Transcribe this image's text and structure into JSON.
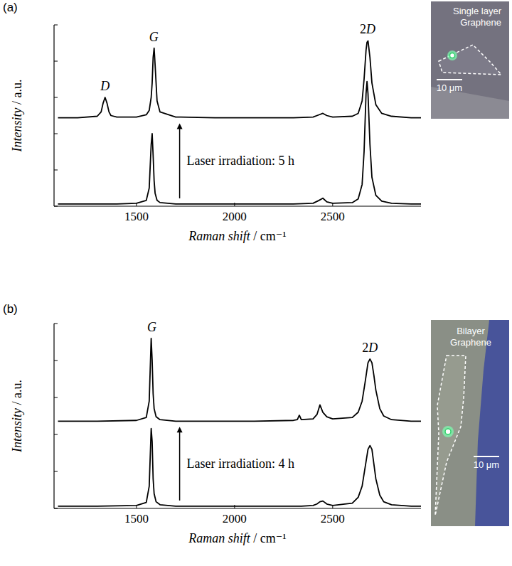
{
  "chart_data": [
    {
      "type": "line",
      "panel_label": "(a)",
      "x_label": "Raman shift / cm⁻¹",
      "y_label": "Intensity / a.u.",
      "xlim": [
        1080,
        2950
      ],
      "xticks": [
        1500,
        2000,
        2500
      ],
      "ylim": [
        0,
        2.5
      ],
      "yticks": [
        0,
        0.5,
        1,
        1.5,
        2,
        2.5
      ],
      "tick_labels": "x",
      "grid": false,
      "x": [
        1100,
        1200,
        1300,
        1320,
        1330,
        1340,
        1350,
        1360,
        1370,
        1400,
        1500,
        1550,
        1565,
        1575,
        1580,
        1585,
        1590,
        1595,
        1605,
        1620,
        1700,
        1900,
        2100,
        2300,
        2400,
        2430,
        2450,
        2470,
        2500,
        2600,
        2630,
        2650,
        2660,
        2670,
        2675,
        2680,
        2690,
        2700,
        2720,
        2750,
        2800,
        2900,
        2950
      ],
      "series": [
        {
          "color": "#000000",
          "values": [
            0.03,
            0.03,
            0.03,
            0.03,
            0.03,
            0.03,
            0.03,
            0.03,
            0.03,
            0.03,
            0.04,
            0.08,
            0.25,
            0.85,
            1.0,
            0.7,
            0.35,
            0.18,
            0.08,
            0.05,
            0.03,
            0.03,
            0.03,
            0.03,
            0.04,
            0.08,
            0.11,
            0.06,
            0.04,
            0.05,
            0.1,
            0.3,
            0.75,
            1.55,
            1.72,
            1.55,
            0.85,
            0.4,
            0.15,
            0.07,
            0.04,
            0.03,
            0.03
          ]
        },
        {
          "color": "#000000",
          "values": [
            1.22,
            1.22,
            1.24,
            1.3,
            1.42,
            1.5,
            1.42,
            1.3,
            1.25,
            1.23,
            1.23,
            1.26,
            1.32,
            1.5,
            1.7,
            2.05,
            2.18,
            1.95,
            1.45,
            1.3,
            1.23,
            1.22,
            1.22,
            1.22,
            1.23,
            1.26,
            1.28,
            1.25,
            1.23,
            1.24,
            1.28,
            1.45,
            1.75,
            2.15,
            2.26,
            2.28,
            2.05,
            1.7,
            1.4,
            1.28,
            1.24,
            1.22,
            1.22
          ]
        }
      ],
      "peak_labels": [
        {
          "text": "D",
          "x": 1340
        },
        {
          "text": "G",
          "x": 1588
        },
        {
          "text": "2D",
          "x": 2678
        }
      ],
      "arrow": {
        "text": "Laser irradiation: 5 h",
        "x": 1720
      },
      "image": {
        "label": "Single layer Graphene",
        "scale_bar": "10 μm"
      }
    },
    {
      "type": "line",
      "panel_label": "(b)",
      "x_label": "Raman shift / cm⁻¹",
      "y_label": "Intensity / a.u.",
      "xlim": [
        1080,
        2950
      ],
      "xticks": [
        1500,
        2000,
        2500
      ],
      "ylim": [
        0,
        2.5
      ],
      "yticks": [
        0,
        0.5,
        1,
        1.5,
        2,
        2.5
      ],
      "tick_labels": "x",
      "grid": false,
      "x": [
        1100,
        1300,
        1500,
        1550,
        1565,
        1575,
        1580,
        1585,
        1590,
        1600,
        1620,
        1700,
        1900,
        2100,
        2300,
        2320,
        2330,
        2340,
        2400,
        2420,
        2435,
        2450,
        2470,
        2500,
        2600,
        2630,
        2650,
        2665,
        2680,
        2690,
        2700,
        2710,
        2720,
        2740,
        2760,
        2800,
        2900,
        2950
      ],
      "series": [
        {
          "color": "#000000",
          "values": [
            0.03,
            0.03,
            0.04,
            0.08,
            0.3,
            1.08,
            0.9,
            0.4,
            0.2,
            0.09,
            0.05,
            0.03,
            0.03,
            0.03,
            0.03,
            0.03,
            0.03,
            0.03,
            0.04,
            0.06,
            0.09,
            0.1,
            0.06,
            0.04,
            0.07,
            0.15,
            0.3,
            0.55,
            0.8,
            0.85,
            0.8,
            0.6,
            0.4,
            0.18,
            0.09,
            0.05,
            0.03,
            0.03
          ]
        },
        {
          "color": "#000000",
          "values": [
            1.18,
            1.18,
            1.19,
            1.23,
            1.45,
            2.3,
            2.0,
            1.55,
            1.35,
            1.24,
            1.2,
            1.18,
            1.18,
            1.18,
            1.19,
            1.2,
            1.26,
            1.2,
            1.21,
            1.27,
            1.4,
            1.3,
            1.24,
            1.21,
            1.23,
            1.3,
            1.45,
            1.7,
            1.97,
            2.02,
            1.97,
            1.8,
            1.6,
            1.35,
            1.25,
            1.2,
            1.18,
            1.18
          ]
        }
      ],
      "peak_labels": [
        {
          "text": "G",
          "x": 1578
        },
        {
          "text": "2D",
          "x": 2690
        }
      ],
      "arrow": {
        "text": "Laser irradiation: 4 h",
        "x": 1720
      },
      "image": {
        "label": "Bilayer Graphene",
        "scale_bar": "10 μm"
      }
    }
  ]
}
